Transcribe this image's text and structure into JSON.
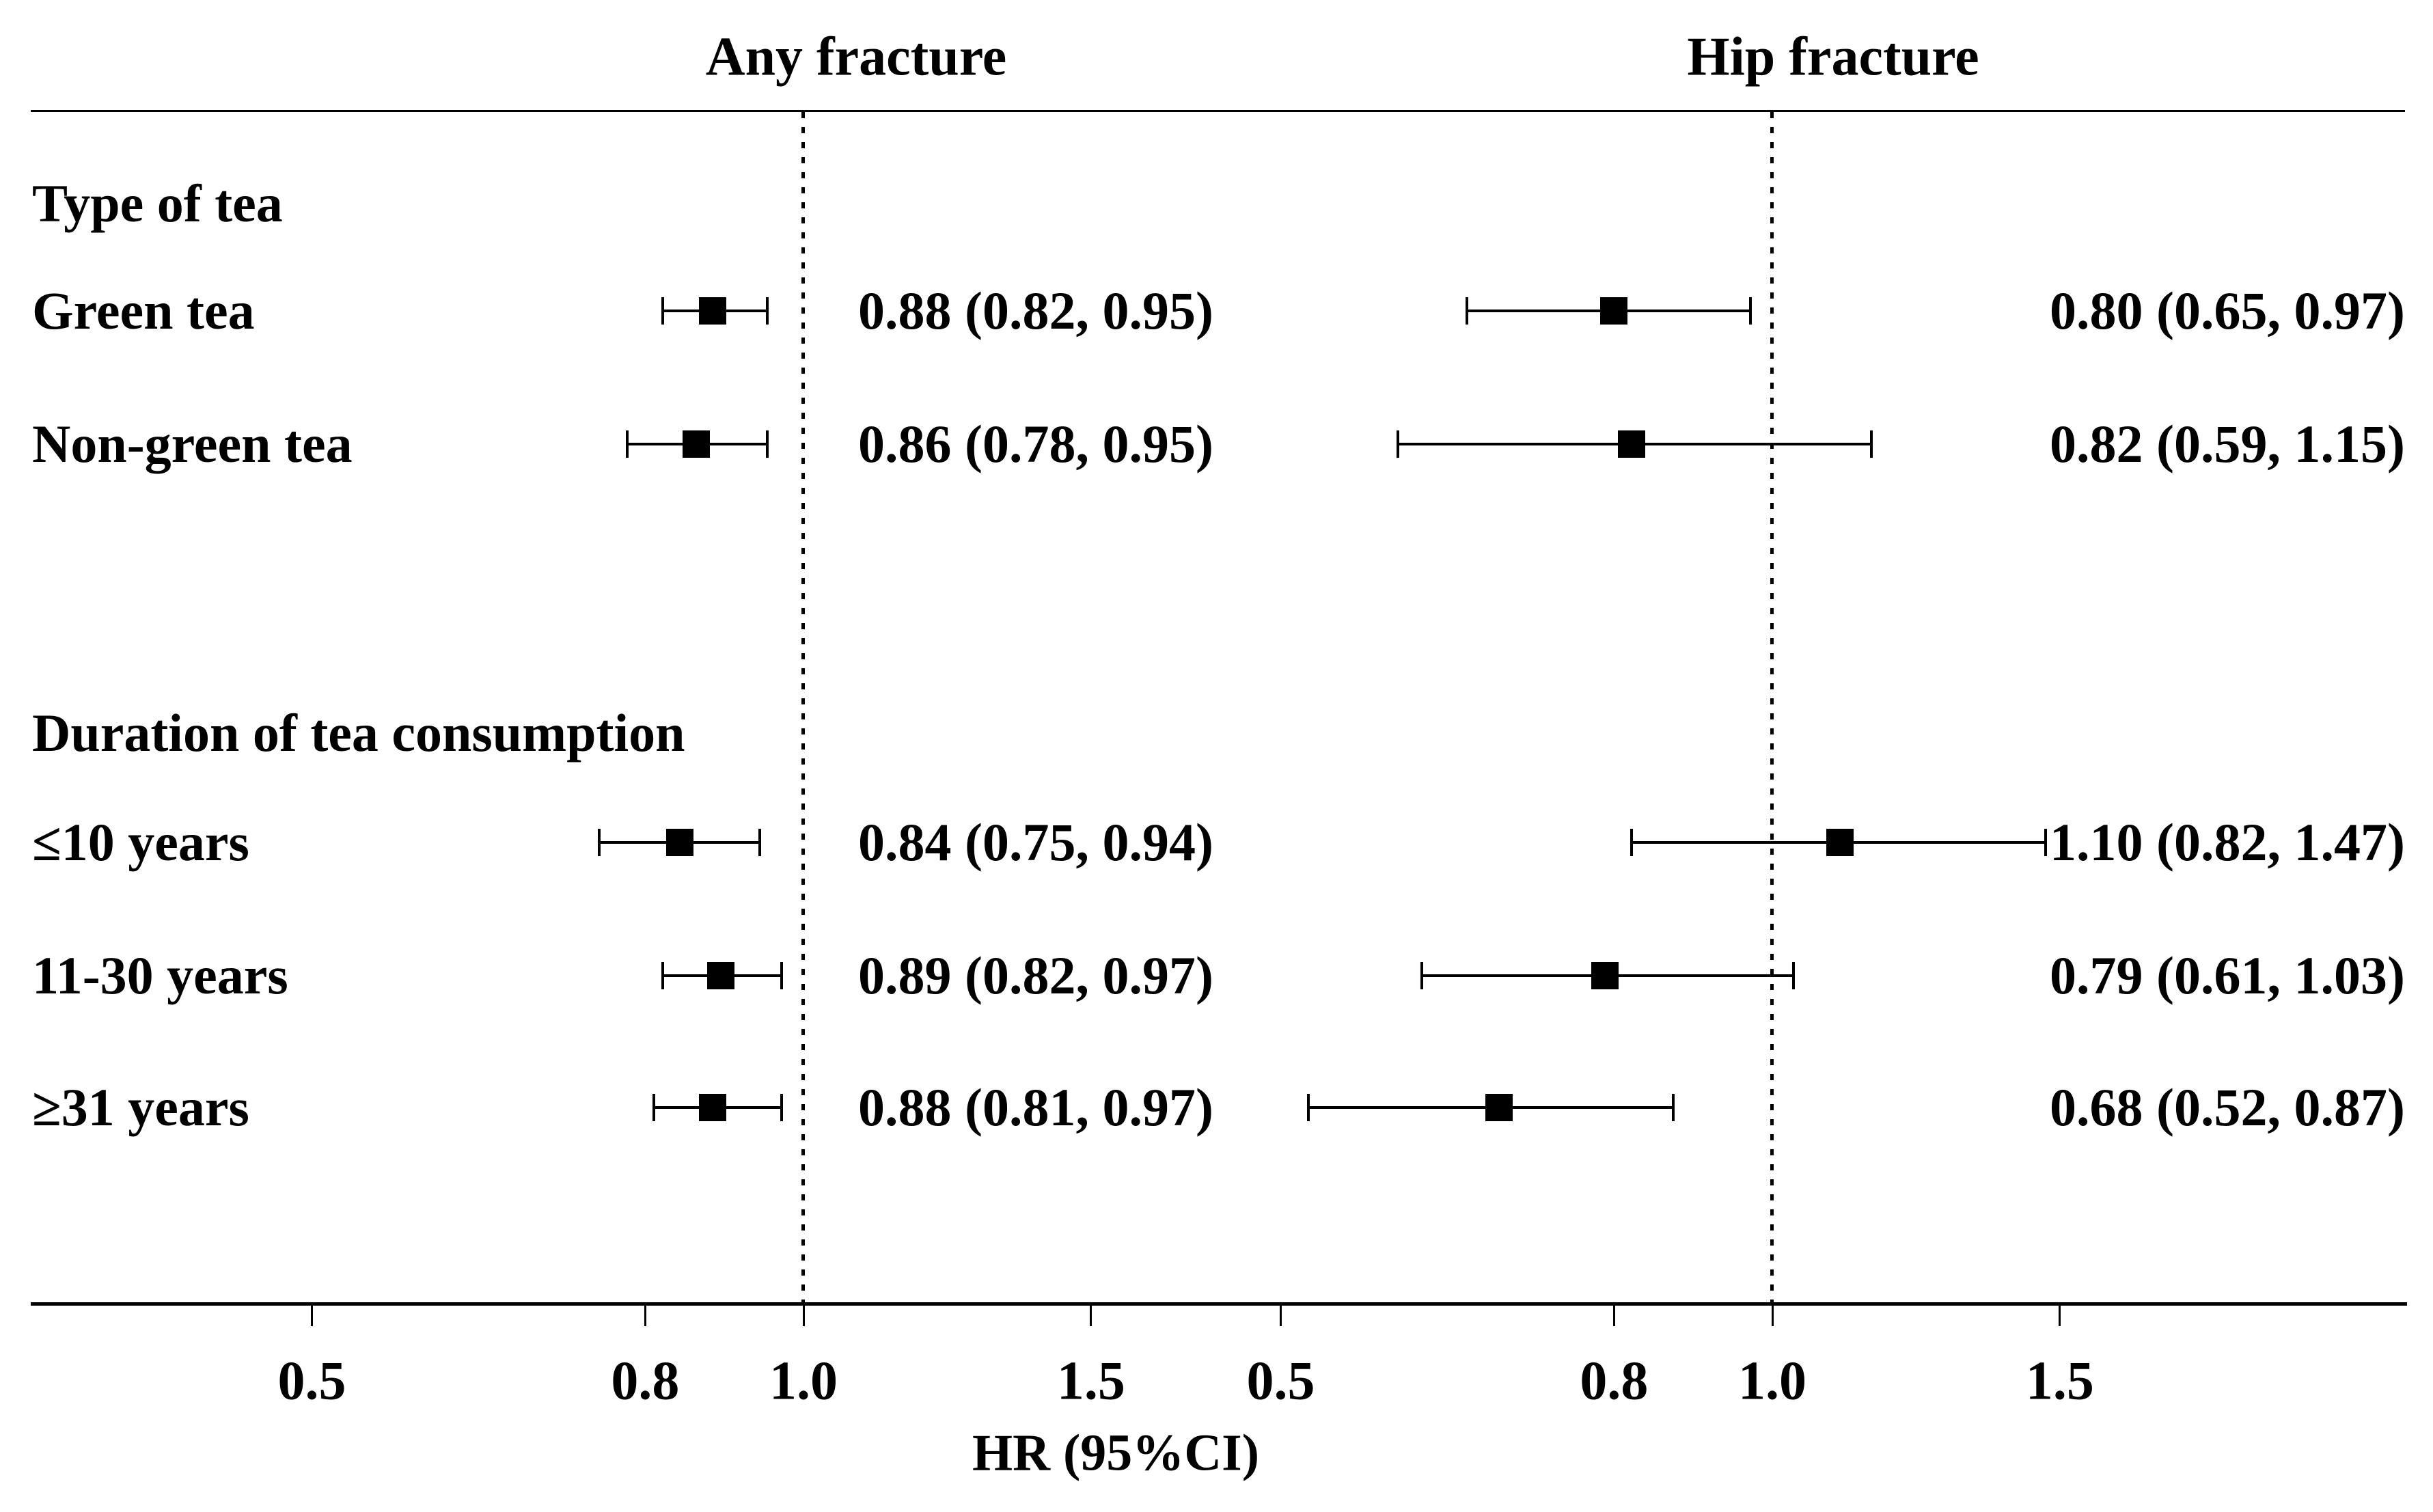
{
  "colors": {
    "foreground": "#000000",
    "background": "#ffffff"
  },
  "chart_data": {
    "type": "forest",
    "xlabel": "HR (95%CI)",
    "x_scale": "log",
    "x_ticks": [
      "0.5",
      "0.8",
      "1.0",
      "1.5"
    ],
    "x_tick_values": [
      0.5,
      0.8,
      1.0,
      1.5
    ],
    "reference_line": 1.0,
    "grid": false,
    "panels": [
      {
        "label": "Any fracture"
      },
      {
        "label": "Hip fracture"
      }
    ],
    "groups": [
      {
        "header": "Type of tea",
        "rows": [
          {
            "label": "Green tea",
            "any_fracture": {
              "hr": 0.88,
              "ci_low": 0.82,
              "ci_high": 0.95,
              "text": "0.88 (0.82, 0.95)"
            },
            "hip_fracture": {
              "hr": 0.8,
              "ci_low": 0.65,
              "ci_high": 0.97,
              "text": "0.80 (0.65, 0.97)"
            }
          },
          {
            "label": "Non-green tea",
            "any_fracture": {
              "hr": 0.86,
              "ci_low": 0.78,
              "ci_high": 0.95,
              "text": "0.86 (0.78, 0.95)"
            },
            "hip_fracture": {
              "hr": 0.82,
              "ci_low": 0.59,
              "ci_high": 1.15,
              "text": "0.82 (0.59, 1.15)"
            }
          }
        ]
      },
      {
        "header": "Duration of tea consumption",
        "rows": [
          {
            "label": "≤10 years",
            "any_fracture": {
              "hr": 0.84,
              "ci_low": 0.75,
              "ci_high": 0.94,
              "text": "0.84 (0.75, 0.94)"
            },
            "hip_fracture": {
              "hr": 1.1,
              "ci_low": 0.82,
              "ci_high": 1.47,
              "text": "1.10 (0.82, 1.47)"
            }
          },
          {
            "label": "11-30 years",
            "any_fracture": {
              "hr": 0.89,
              "ci_low": 0.82,
              "ci_high": 0.97,
              "text": "0.89 (0.82, 0.97)"
            },
            "hip_fracture": {
              "hr": 0.79,
              "ci_low": 0.61,
              "ci_high": 1.03,
              "text": "0.79 (0.61, 1.03)"
            }
          },
          {
            "label": "≥31 years",
            "any_fracture": {
              "hr": 0.88,
              "ci_low": 0.81,
              "ci_high": 0.97,
              "text": "0.88 (0.81, 0.97)"
            },
            "hip_fracture": {
              "hr": 0.68,
              "ci_low": 0.52,
              "ci_high": 0.87,
              "text": "0.68 (0.52, 0.87)"
            }
          }
        ]
      }
    ]
  }
}
